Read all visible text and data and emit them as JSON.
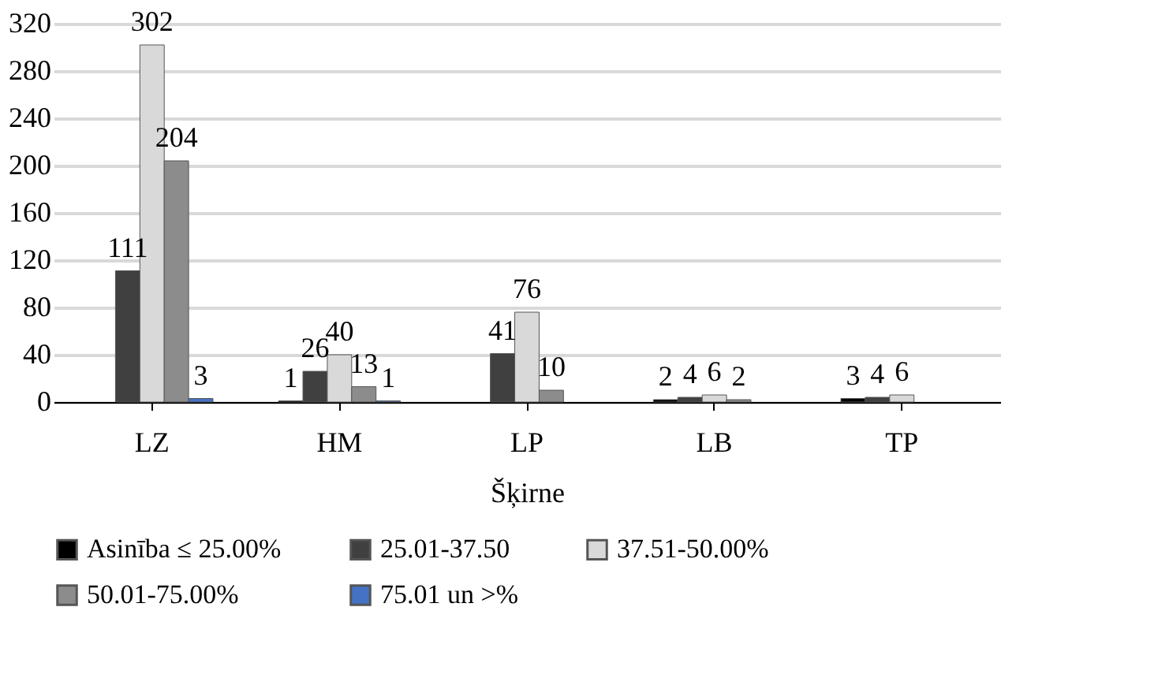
{
  "chart_data": {
    "type": "bar",
    "categories": [
      "LZ",
      "HM",
      "LP",
      "LB",
      "TP"
    ],
    "xlabel": "Šķirne",
    "series": [
      {
        "name": "Asinība ≤ 25.00%",
        "color": "#000000",
        "values": [
          null,
          1,
          null,
          2,
          3
        ]
      },
      {
        "name": "25.01-37.50",
        "color": "#404040",
        "values": [
          111,
          26,
          41,
          4,
          4
        ]
      },
      {
        "name": "37.51-50.00%",
        "color": "#d9d9d9",
        "values": [
          302,
          40,
          76,
          6,
          6
        ]
      },
      {
        "name": "50.01-75.00%",
        "color": "#8c8c8c",
        "values": [
          204,
          13,
          10,
          2,
          null
        ]
      },
      {
        "name": "75.01 un >%",
        "color": "#4472c4",
        "values": [
          3,
          1,
          null,
          null,
          null
        ]
      }
    ],
    "ylim": [
      0,
      320
    ],
    "yticks": [
      0,
      40,
      80,
      120,
      160,
      200,
      240,
      280,
      320
    ],
    "grid": "y",
    "legend": "bottom",
    "data_labels": true
  }
}
